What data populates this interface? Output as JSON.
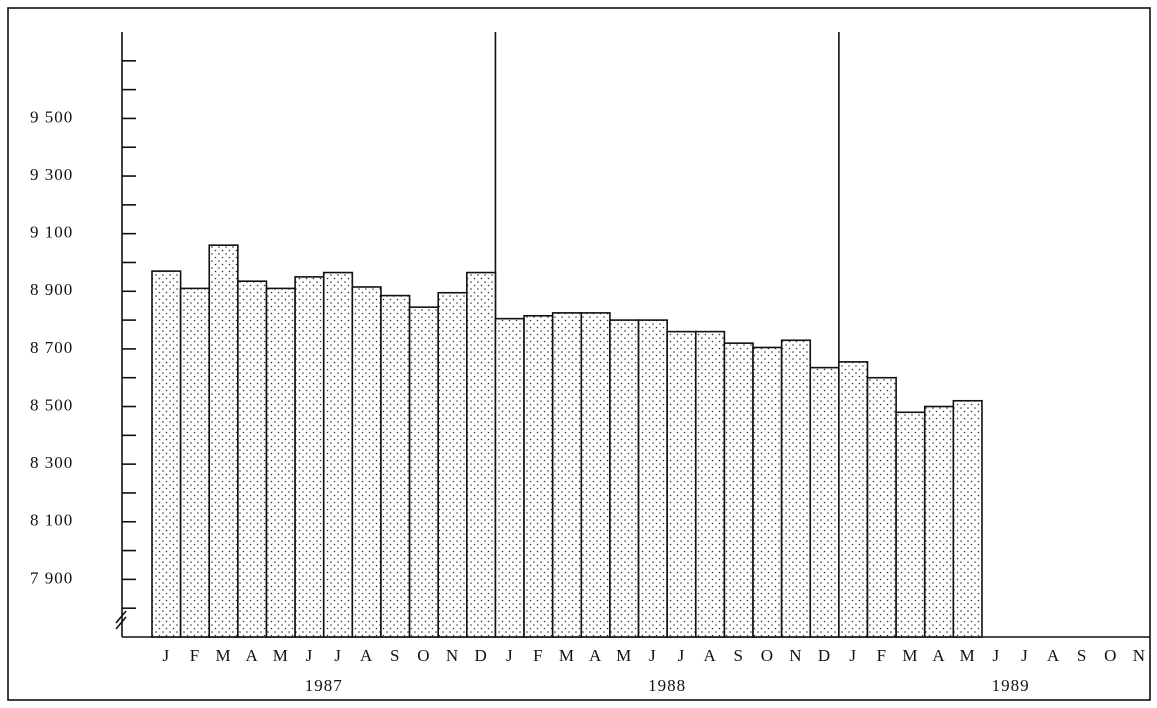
{
  "chart_data": {
    "type": "bar",
    "categories": [
      "J",
      "F",
      "M",
      "A",
      "M",
      "J",
      "J",
      "A",
      "S",
      "O",
      "N",
      "D",
      "J",
      "F",
      "M",
      "A",
      "M",
      "J",
      "J",
      "A",
      "S",
      "O",
      "N",
      "D",
      "J",
      "F",
      "M",
      "A",
      "M",
      "J",
      "J",
      "A",
      "S",
      "O",
      "N"
    ],
    "values": [
      8970,
      8910,
      9060,
      8935,
      8910,
      8950,
      8965,
      8915,
      8885,
      8845,
      8895,
      8965,
      8805,
      8815,
      8825,
      8825,
      8800,
      8800,
      8760,
      8760,
      8720,
      8705,
      8730,
      8635,
      8655,
      8600,
      8480,
      8500,
      8520,
      null,
      null,
      null,
      null,
      null,
      null
    ],
    "year_labels": [
      "1987",
      "1988",
      "1989"
    ],
    "color": "#ffffff",
    "ylim": [
      7700,
      9800
    ],
    "yticks": [
      {
        "value": 7900,
        "label": "7 900"
      },
      {
        "value": 8100,
        "label": "8 100"
      },
      {
        "value": 8300,
        "label": "8 300"
      },
      {
        "value": 8500,
        "label": "8 500"
      },
      {
        "value": 8700,
        "label": "8 700"
      },
      {
        "value": 8900,
        "label": "8 900"
      },
      {
        "value": 9100,
        "label": "9 100"
      },
      {
        "value": 9300,
        "label": "9 300"
      },
      {
        "value": 9500,
        "label": "9 500"
      }
    ],
    "yminor_ticks": [
      7800,
      8000,
      8200,
      8400,
      8600,
      8800,
      9000,
      9200,
      9400,
      9600,
      9700
    ]
  }
}
